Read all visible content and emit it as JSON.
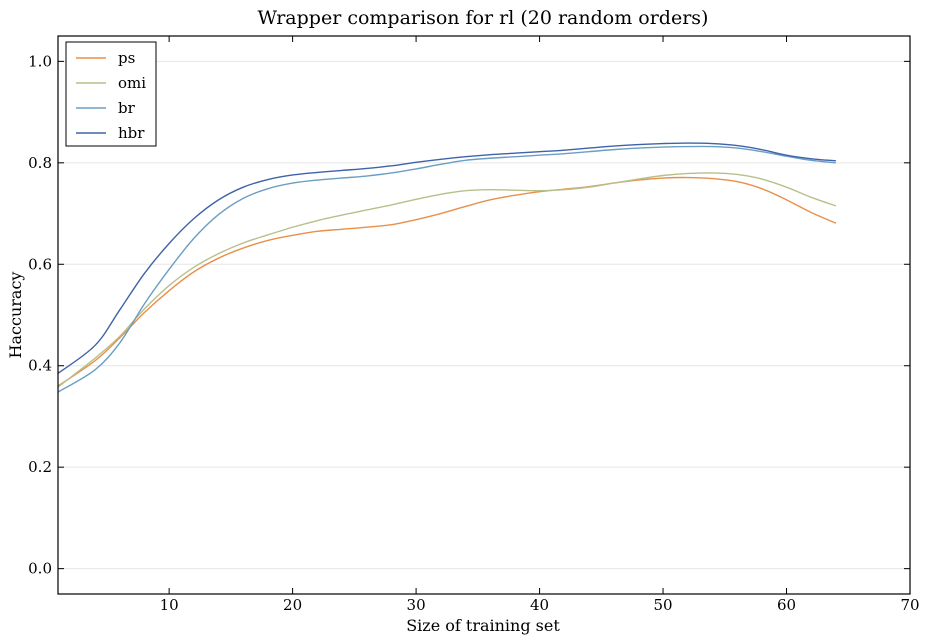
{
  "chart_data": {
    "type": "line",
    "title": "Wrapper comparison for rl (20 random orders)",
    "xlabel": "Size of training set",
    "ylabel": "Haccuracy",
    "xlim": [
      1,
      70
    ],
    "ylim": [
      -0.05,
      1.05
    ],
    "x_ticks": [
      10,
      20,
      30,
      40,
      50,
      60,
      70
    ],
    "y_ticks": [
      0.0,
      0.2,
      0.4,
      0.6,
      0.8,
      1.0
    ],
    "x_tick_labels": [
      "10",
      "20",
      "30",
      "40",
      "50",
      "60",
      "70"
    ],
    "y_tick_labels": [
      "0.0",
      "0.2",
      "0.4",
      "0.6",
      "0.8",
      "1.0"
    ],
    "grid": "horizontal",
    "legend_position": "top-left",
    "x": [
      1,
      4,
      6,
      8,
      10,
      12,
      14,
      16,
      18,
      20,
      22,
      24,
      26,
      28,
      30,
      32,
      34,
      36,
      38,
      40,
      42,
      44,
      46,
      48,
      50,
      52,
      54,
      56,
      58,
      60,
      62,
      64
    ],
    "series": [
      {
        "name": "ps",
        "color": "#e8904a",
        "values": [
          0.36,
          0.41,
          0.455,
          0.505,
          0.548,
          0.585,
          0.612,
          0.632,
          0.647,
          0.657,
          0.665,
          0.669,
          0.673,
          0.678,
          0.688,
          0.7,
          0.714,
          0.727,
          0.736,
          0.743,
          0.748,
          0.753,
          0.76,
          0.766,
          0.77,
          0.771,
          0.769,
          0.763,
          0.749,
          0.727,
          0.702,
          0.681
        ]
      },
      {
        "name": "omi",
        "color": "#b7c08a",
        "values": [
          0.358,
          0.415,
          0.458,
          0.512,
          0.558,
          0.594,
          0.621,
          0.642,
          0.658,
          0.673,
          0.686,
          0.697,
          0.707,
          0.717,
          0.728,
          0.738,
          0.745,
          0.747,
          0.746,
          0.745,
          0.747,
          0.752,
          0.76,
          0.768,
          0.775,
          0.779,
          0.78,
          0.777,
          0.768,
          0.752,
          0.732,
          0.715
        ]
      },
      {
        "name": "br",
        "color": "#6a9ec3",
        "values": [
          0.348,
          0.392,
          0.445,
          0.522,
          0.59,
          0.651,
          0.698,
          0.73,
          0.749,
          0.76,
          0.766,
          0.77,
          0.774,
          0.78,
          0.788,
          0.797,
          0.805,
          0.809,
          0.812,
          0.815,
          0.818,
          0.822,
          0.826,
          0.829,
          0.831,
          0.832,
          0.832,
          0.829,
          0.822,
          0.813,
          0.805,
          0.8
        ]
      },
      {
        "name": "hbr",
        "color": "#3f63a8",
        "values": [
          0.385,
          0.44,
          0.51,
          0.582,
          0.641,
          0.69,
          0.727,
          0.752,
          0.767,
          0.776,
          0.781,
          0.785,
          0.789,
          0.794,
          0.801,
          0.807,
          0.812,
          0.816,
          0.819,
          0.822,
          0.825,
          0.829,
          0.833,
          0.836,
          0.838,
          0.839,
          0.838,
          0.834,
          0.826,
          0.815,
          0.808,
          0.804
        ]
      }
    ]
  }
}
